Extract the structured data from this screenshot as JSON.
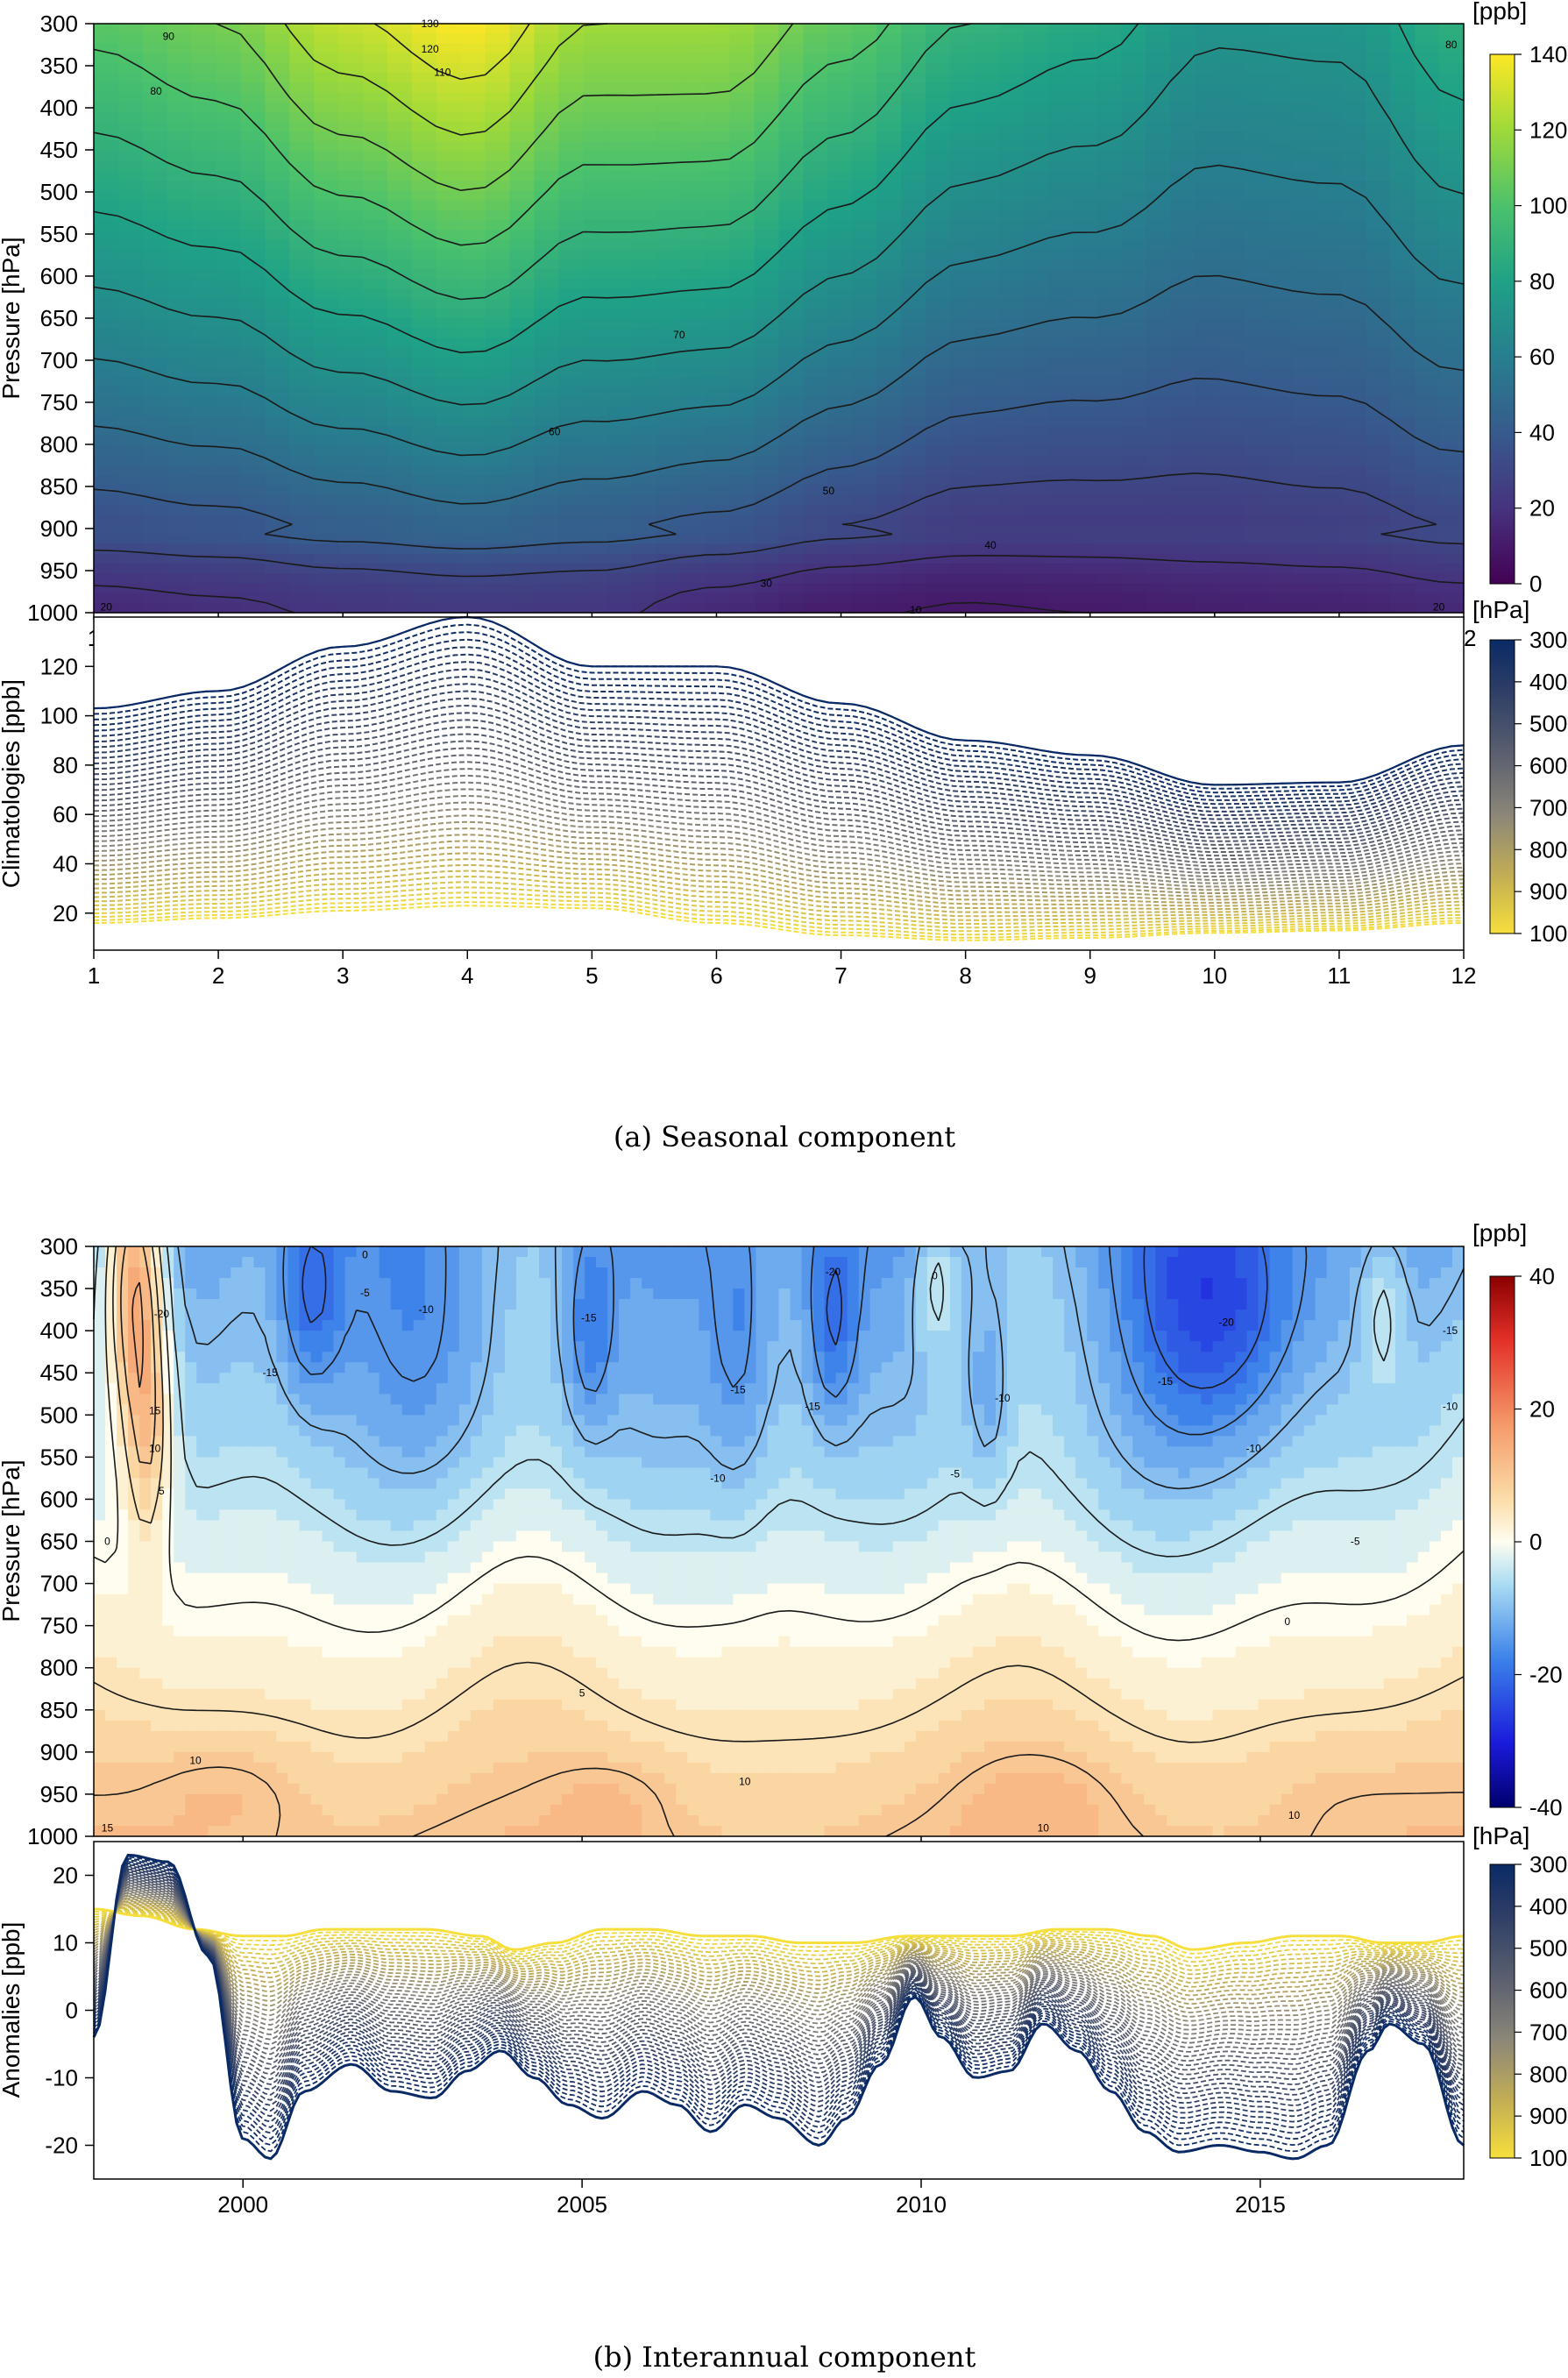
{
  "captions": {
    "a": "(a) Seasonal component",
    "b": "(b) Interannual component"
  },
  "chart_data": [
    {
      "type": "heatmap",
      "panel": "a-top",
      "ylabel": "Pressure [hPa]",
      "colorbar_unit": "[ppb]",
      "colorbar_ticks": [
        0,
        20,
        40,
        60,
        80,
        100,
        120,
        140
      ],
      "zlim": [
        0,
        140
      ],
      "palette": "viridis",
      "x_ticks": [
        1,
        2,
        3,
        4,
        5,
        6,
        7,
        8,
        9,
        10,
        11,
        12
      ],
      "xlim": [
        1,
        12
      ],
      "y_ticks": [
        300,
        350,
        400,
        450,
        500,
        550,
        600,
        650,
        700,
        750,
        800,
        850,
        900,
        950,
        1000
      ],
      "ylim": [
        1000,
        300
      ],
      "contour_levels": [
        10,
        20,
        30,
        40,
        50,
        60,
        70,
        80,
        90,
        100,
        110,
        120,
        130
      ],
      "contour_labels": [
        {
          "text": "130",
          "x": 3.7,
          "y": 300
        },
        {
          "text": "120",
          "x": 3.7,
          "y": 330
        },
        {
          "text": "110",
          "x": 3.8,
          "y": 358
        },
        {
          "text": "90",
          "x": 1.6,
          "y": 315
        },
        {
          "text": "80",
          "x": 1.5,
          "y": 380
        },
        {
          "text": "80",
          "x": 11.9,
          "y": 325
        },
        {
          "text": "70",
          "x": 5.7,
          "y": 670
        },
        {
          "text": "60",
          "x": 4.7,
          "y": 785
        },
        {
          "text": "50",
          "x": 6.9,
          "y": 855
        },
        {
          "text": "40",
          "x": 8.2,
          "y": 920
        },
        {
          "text": "30",
          "x": 6.4,
          "y": 965
        },
        {
          "text": "20",
          "x": 1.1,
          "y": 993
        },
        {
          "text": "20",
          "x": 11.8,
          "y": 993
        },
        {
          "text": "10",
          "x": 7.6,
          "y": 997
        }
      ],
      "model": {
        "surface_ppb": [
          16,
          18,
          21,
          23,
          22,
          16,
          11,
          9,
          10,
          12,
          13,
          16
        ],
        "top_ppb": [
          103,
          110,
          128,
          140,
          120,
          120,
          105,
          90,
          84,
          72,
          73,
          88
        ]
      }
    },
    {
      "type": "line",
      "panel": "a-bottom",
      "ylabel": "Climatologies [ppb]",
      "colorbar_unit": "[hPa]",
      "colorbar_ticks": [
        300,
        400,
        500,
        600,
        700,
        800,
        900,
        1000
      ],
      "x_ticks": [
        1,
        2,
        3,
        4,
        5,
        6,
        7,
        8,
        9,
        10,
        11,
        12
      ],
      "xlim": [
        1,
        12
      ],
      "y_ticks": [
        20,
        40,
        60,
        80,
        100,
        120
      ],
      "ylim": [
        5,
        140
      ],
      "series_levels": "one dashed line per pressure level, 300 to 1000 hPa",
      "envelope_top_ppb": [
        103,
        110,
        128,
        140,
        120,
        120,
        105,
        90,
        84,
        72,
        73,
        88
      ],
      "envelope_bottom_ppb": [
        16,
        18,
        21,
        23,
        22,
        16,
        11,
        9,
        10,
        12,
        13,
        16
      ]
    },
    {
      "type": "heatmap",
      "panel": "b-top",
      "ylabel": "Pressure [hPa]",
      "colorbar_unit": "[ppb]",
      "colorbar_ticks": [
        -40,
        -20,
        0,
        20,
        40
      ],
      "zlim": [
        -40,
        40
      ],
      "palette": "blue-white-red",
      "x_ticks": [
        2000,
        2005,
        2010,
        2015
      ],
      "xlim": [
        1997.8,
        2018
      ],
      "y_ticks": [
        300,
        350,
        400,
        450,
        500,
        550,
        600,
        650,
        700,
        750,
        800,
        850,
        900,
        950,
        1000
      ],
      "ylim": [
        1000,
        300
      ],
      "contour_levels": [
        -20,
        -15,
        -10,
        -5,
        0,
        5,
        10,
        15,
        20
      ],
      "contour_labels": [
        {
          "text": "-20",
          "x": 1998.8,
          "y": 380
        },
        {
          "text": "15",
          "x": 1998.7,
          "y": 495
        },
        {
          "text": "10",
          "x": 1998.7,
          "y": 540
        },
        {
          "text": "5",
          "x": 1998.8,
          "y": 590
        },
        {
          "text": "0",
          "x": 1998.0,
          "y": 650
        },
        {
          "text": "0",
          "x": 2001.8,
          "y": 310
        },
        {
          "text": "-5",
          "x": 2001.8,
          "y": 355
        },
        {
          "text": "-10",
          "x": 2002.7,
          "y": 375
        },
        {
          "text": "-15",
          "x": 2000.4,
          "y": 450
        },
        {
          "text": "-15",
          "x": 2005.1,
          "y": 385
        },
        {
          "text": "-15",
          "x": 2007.3,
          "y": 470
        },
        {
          "text": "-15",
          "x": 2008.4,
          "y": 490
        },
        {
          "text": "-10",
          "x": 2007.0,
          "y": 575
        },
        {
          "text": "-20",
          "x": 2008.7,
          "y": 330
        },
        {
          "text": "0",
          "x": 2010.2,
          "y": 335
        },
        {
          "text": "-5",
          "x": 2010.5,
          "y": 570
        },
        {
          "text": "-10",
          "x": 2011.2,
          "y": 480
        },
        {
          "text": "-15",
          "x": 2013.6,
          "y": 460
        },
        {
          "text": "-20",
          "x": 2014.5,
          "y": 390
        },
        {
          "text": "-10",
          "x": 2014.9,
          "y": 540
        },
        {
          "text": "-5",
          "x": 2016.4,
          "y": 650
        },
        {
          "text": "-15",
          "x": 2017.8,
          "y": 400
        },
        {
          "text": "-10",
          "x": 2017.8,
          "y": 490
        },
        {
          "text": "0",
          "x": 2015.4,
          "y": 745
        },
        {
          "text": "5",
          "x": 2005.0,
          "y": 830
        },
        {
          "text": "10",
          "x": 1999.3,
          "y": 910
        },
        {
          "text": "10",
          "x": 2007.4,
          "y": 935
        },
        {
          "text": "10",
          "x": 2011.8,
          "y": 990
        },
        {
          "text": "10",
          "x": 2015.5,
          "y": 975
        },
        {
          "text": "15",
          "x": 1998.0,
          "y": 990
        }
      ]
    },
    {
      "type": "line",
      "panel": "b-bottom",
      "ylabel": "Anomalies [ppb]",
      "colorbar_unit": "[hPa]",
      "colorbar_ticks": [
        300,
        400,
        500,
        600,
        700,
        800,
        900,
        1000
      ],
      "x_ticks": [
        2000,
        2005,
        2010,
        2015
      ],
      "xlim": [
        1997.8,
        2018
      ],
      "y_ticks": [
        -20,
        -10,
        0,
        10,
        20
      ],
      "ylim": [
        -25,
        25
      ],
      "series_levels": "one dashed line per pressure level, 300 to 1000 hPa",
      "top_level_300hPa": [
        [
          1997.8,
          -4
        ],
        [
          1998.3,
          23
        ],
        [
          1998.9,
          22
        ],
        [
          1999.5,
          8
        ],
        [
          2000.0,
          -19
        ],
        [
          2000.4,
          -22
        ],
        [
          2000.9,
          -12
        ],
        [
          2001.6,
          -8
        ],
        [
          2002.2,
          -12
        ],
        [
          2002.8,
          -13
        ],
        [
          2003.3,
          -9
        ],
        [
          2003.8,
          -6
        ],
        [
          2004.3,
          -10
        ],
        [
          2004.8,
          -14
        ],
        [
          2005.3,
          -16
        ],
        [
          2005.9,
          -12
        ],
        [
          2006.4,
          -14
        ],
        [
          2006.9,
          -18
        ],
        [
          2007.4,
          -14
        ],
        [
          2007.9,
          -16
        ],
        [
          2008.5,
          -20
        ],
        [
          2008.9,
          -16
        ],
        [
          2009.4,
          -8
        ],
        [
          2009.9,
          2
        ],
        [
          2010.3,
          -4
        ],
        [
          2010.8,
          -10
        ],
        [
          2011.3,
          -9
        ],
        [
          2011.8,
          -2
        ],
        [
          2012.3,
          -6
        ],
        [
          2012.8,
          -12
        ],
        [
          2013.3,
          -18
        ],
        [
          2013.8,
          -21
        ],
        [
          2014.4,
          -20
        ],
        [
          2015.0,
          -21
        ],
        [
          2015.5,
          -22
        ],
        [
          2016.0,
          -20
        ],
        [
          2016.6,
          -6
        ],
        [
          2016.9,
          -2
        ],
        [
          2017.4,
          -5
        ],
        [
          2018.0,
          -20
        ]
      ],
      "bottom_level_1000hPa": [
        [
          1997.8,
          15
        ],
        [
          1998.5,
          14
        ],
        [
          1999.3,
          12
        ],
        [
          2000.0,
          11
        ],
        [
          2000.6,
          11
        ],
        [
          2001.2,
          12
        ],
        [
          2002.0,
          12
        ],
        [
          2002.7,
          12
        ],
        [
          2003.5,
          11
        ],
        [
          2004.0,
          9
        ],
        [
          2004.6,
          10
        ],
        [
          2005.3,
          12
        ],
        [
          2006.0,
          12
        ],
        [
          2006.8,
          11
        ],
        [
          2007.5,
          11
        ],
        [
          2008.2,
          10
        ],
        [
          2009.0,
          10
        ],
        [
          2009.8,
          11
        ],
        [
          2010.5,
          11
        ],
        [
          2011.3,
          11
        ],
        [
          2012.0,
          12
        ],
        [
          2012.7,
          12
        ],
        [
          2013.4,
          11
        ],
        [
          2014.0,
          9
        ],
        [
          2014.8,
          10
        ],
        [
          2015.5,
          11
        ],
        [
          2016.2,
          11
        ],
        [
          2016.8,
          10
        ],
        [
          2017.4,
          10
        ],
        [
          2018.0,
          11
        ]
      ]
    }
  ]
}
